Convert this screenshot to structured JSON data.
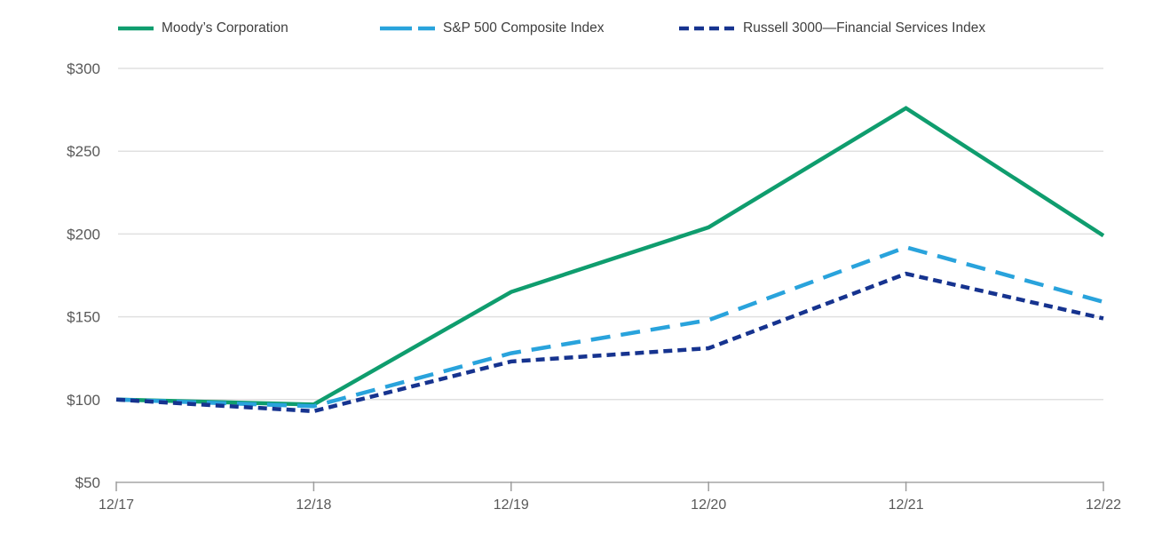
{
  "chart_data": {
    "type": "line",
    "title": "",
    "xlabel": "",
    "ylabel": "",
    "x_categories": [
      "12/17",
      "12/18",
      "12/19",
      "12/20",
      "12/21",
      "12/22"
    ],
    "series": [
      {
        "name": "Moody’s Corporation",
        "color": "#0f9d6e",
        "line_style": "solid",
        "values": [
          100,
          97,
          165,
          204,
          276,
          199
        ]
      },
      {
        "name": "S&P 500 Composite Index",
        "color": "#29a3dc",
        "line_style": "long-dash",
        "values": [
          100,
          96,
          128,
          148,
          192,
          159
        ]
      },
      {
        "name": "Russell 3000—Financial Services Index",
        "color": "#16338f",
        "line_style": "short-dash",
        "values": [
          100,
          93,
          123,
          131,
          176,
          149
        ]
      }
    ],
    "y_axis": {
      "min": 50,
      "max": 300,
      "ticks": [
        50,
        100,
        150,
        200,
        250,
        300
      ],
      "tick_labels": [
        "$50",
        "$100",
        "$150",
        "$200",
        "$250",
        "$300"
      ]
    },
    "grid": true,
    "legend_position": "top",
    "colors": {
      "gridline": "#e0e0e0",
      "axis_line": "#bcbcbc",
      "tick_mark": "#9e9e9e",
      "axis_text": "#595959",
      "legend_text": "#3f3f3f",
      "background": "#ffffff"
    }
  }
}
